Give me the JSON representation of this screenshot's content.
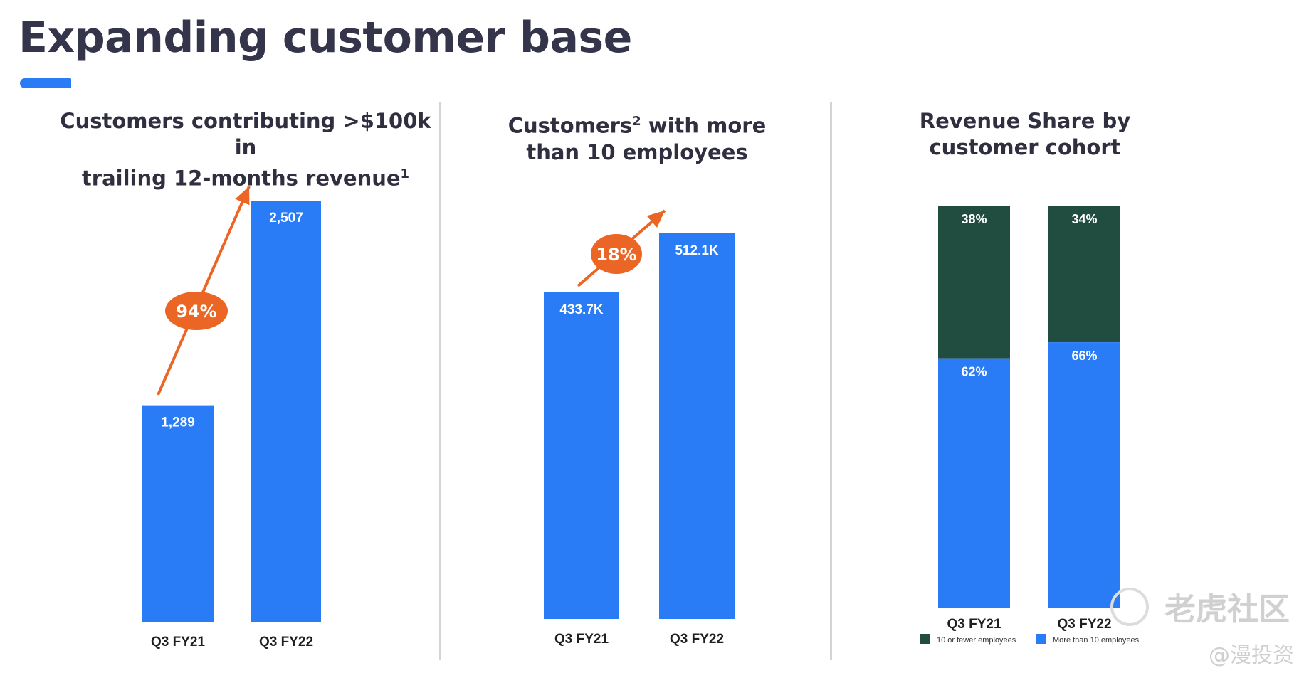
{
  "page": {
    "title": "Expanding customer base",
    "watermark": "老虎社区",
    "watermark_handle": "@漫投资"
  },
  "colors": {
    "blue": "#2a7cf6",
    "dark_green": "#214c40",
    "orange": "#eb6524",
    "title": "#34344a"
  },
  "panels": [
    {
      "title_line1": "Customers contributing >$100k in",
      "title_line2": "trailing 12-months revenue",
      "footnote": "1"
    },
    {
      "title_pre": "Customers",
      "footnote": "2",
      "title_post": " with more",
      "title_line2": "than 10 employees"
    },
    {
      "title_line1": "Revenue Share by",
      "title_line2": "customer cohort"
    }
  ],
  "chart_data": [
    {
      "type": "bar",
      "categories": [
        "Q3 FY21",
        "Q3 FY22"
      ],
      "values": [
        1289,
        2507
      ],
      "value_labels": [
        "1,289",
        "2,507"
      ],
      "growth_label": "94%"
    },
    {
      "type": "bar",
      "categories": [
        "Q3 FY21",
        "Q3 FY22"
      ],
      "values": [
        433.7,
        512.1
      ],
      "value_labels": [
        "433.7K",
        "512.1K"
      ],
      "growth_label": "18%"
    },
    {
      "type": "bar",
      "stacked": true,
      "categories": [
        "Q3 FY21",
        "Q3 FY22"
      ],
      "series": [
        {
          "name": "10 or fewer employees",
          "values": [
            38,
            34
          ],
          "labels": [
            "38%",
            "34%"
          ],
          "color": "#214c40"
        },
        {
          "name": "More than 10 employees",
          "values": [
            62,
            66
          ],
          "labels": [
            "62%",
            "66%"
          ],
          "color": "#2a7cf6"
        }
      ],
      "legend": "bottom"
    }
  ]
}
